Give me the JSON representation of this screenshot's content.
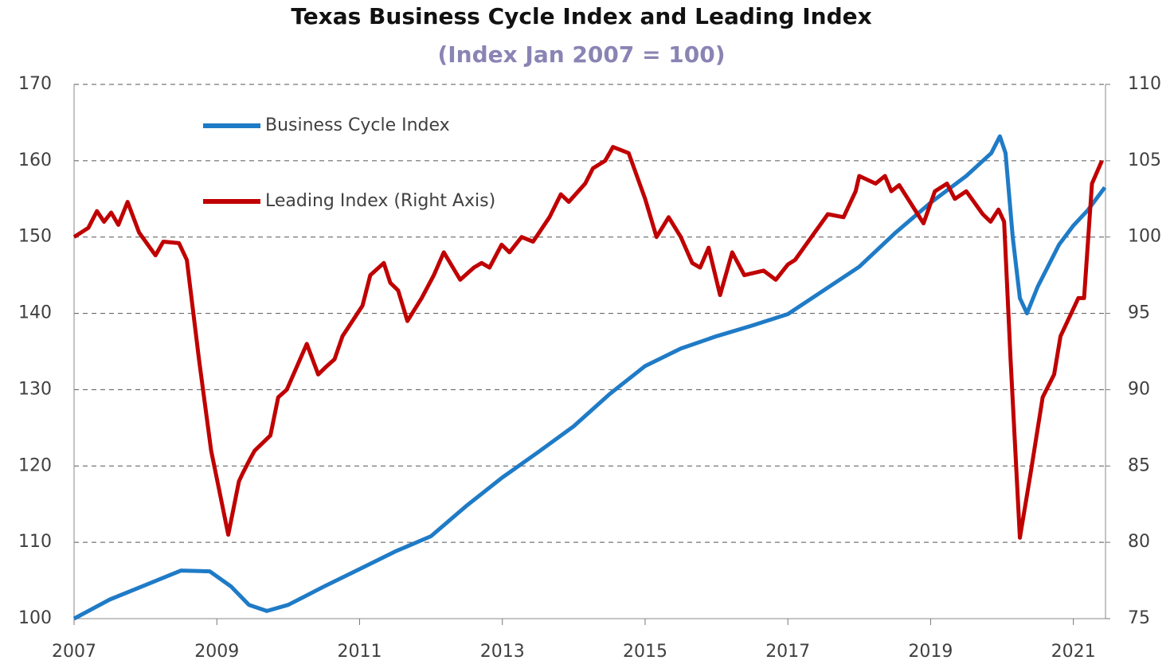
{
  "chart_data": {
    "type": "line",
    "title": "Texas Business Cycle Index and Leading Index",
    "subtitle": "(Index Jan 2007 = 100)",
    "xlim": [
      2007,
      2021.45
    ],
    "xticks": [
      2007,
      2009,
      2011,
      2013,
      2015,
      2017,
      2019,
      2021
    ],
    "ylim": [
      100,
      170
    ],
    "yticks": [
      100,
      110,
      120,
      130,
      140,
      150,
      160,
      170
    ],
    "y2lim": [
      75,
      110
    ],
    "y2ticks": [
      75,
      80,
      85,
      90,
      95,
      100,
      105,
      110
    ],
    "grid": true,
    "legend": "top-left",
    "series": [
      {
        "name": "Business Cycle Index",
        "color": "#1f7bc6",
        "x": [
          2007.0,
          2007.5,
          2008.0,
          2008.5,
          2008.9,
          2009.2,
          2009.45,
          2009.7,
          2010.0,
          2010.5,
          2011.0,
          2011.5,
          2012.0,
          2012.5,
          2013.0,
          2013.5,
          2014.0,
          2014.5,
          2015.0,
          2015.5,
          2016.0,
          2016.5,
          2017.0,
          2017.5,
          2018.0,
          2018.5,
          2019.0,
          2019.5,
          2019.85,
          2019.97,
          2020.05,
          2020.15,
          2020.25,
          2020.35,
          2020.5,
          2020.8,
          2021.0,
          2021.2,
          2021.44
        ],
        "values": [
          100,
          102.5,
          104.4,
          106.3,
          106.2,
          104.2,
          101.8,
          101,
          101.8,
          104.2,
          106.5,
          108.8,
          110.8,
          114.8,
          118.5,
          121.8,
          125.2,
          129.4,
          133.1,
          135.4,
          137,
          138.4,
          139.9,
          143,
          146.1,
          150.5,
          154.5,
          158,
          161,
          163.2,
          161,
          150,
          142,
          140,
          143.5,
          149,
          151.5,
          153.5,
          156.5
        ]
      },
      {
        "name": "Leading Index (Right Axis)",
        "color": "#c00000",
        "axis": "y2",
        "x": [
          2007.0,
          2007.2,
          2007.32,
          2007.42,
          2007.52,
          2007.62,
          2007.75,
          2007.91,
          2008.14,
          2008.25,
          2008.47,
          2008.58,
          2008.75,
          2008.92,
          2009.03,
          2009.16,
          2009.31,
          2009.36,
          2009.47,
          2009.53,
          2009.75,
          2009.86,
          2009.98,
          2010.26,
          2010.42,
          2010.53,
          2010.65,
          2010.76,
          2011.04,
          2011.15,
          2011.34,
          2011.43,
          2011.54,
          2011.67,
          2011.87,
          2012.04,
          2012.18,
          2012.41,
          2012.6,
          2012.71,
          2012.82,
          2012.99,
          2013.1,
          2013.27,
          2013.43,
          2013.66,
          2013.82,
          2013.93,
          2014.16,
          2014.27,
          2014.44,
          2014.55,
          2014.77,
          2015.0,
          2015.16,
          2015.33,
          2015.5,
          2015.66,
          2015.77,
          2015.89,
          2016.05,
          2016.22,
          2016.39,
          2016.66,
          2016.83,
          2017.0,
          2017.1,
          2017.33,
          2017.56,
          2017.78,
          2017.95,
          2018.0,
          2018.23,
          2018.36,
          2018.45,
          2018.56,
          2018.9,
          2019.06,
          2019.23,
          2019.34,
          2019.5,
          2019.73,
          2019.84,
          2019.95,
          2020.03,
          2020.12,
          2020.25,
          2020.4,
          2020.57,
          2020.73,
          2020.82,
          2021.07,
          2021.15,
          2021.26,
          2021.4
        ],
        "values": [
          100,
          100.6,
          101.7,
          101,
          101.6,
          100.8,
          102.3,
          100.3,
          98.8,
          99.7,
          99.6,
          98.5,
          92,
          86,
          83.5,
          80.5,
          84,
          84.5,
          85.5,
          86,
          87,
          89.5,
          90,
          93,
          91,
          91.5,
          92,
          93.5,
          95.5,
          97.5,
          98.3,
          97,
          96.5,
          94.5,
          96,
          97.5,
          99,
          97.2,
          98,
          98.3,
          98,
          99.5,
          99,
          100,
          99.7,
          101.3,
          102.8,
          102.3,
          103.5,
          104.5,
          105,
          105.9,
          105.5,
          102.5,
          100,
          101.3,
          100,
          98.3,
          98,
          99.3,
          96.2,
          99,
          97.5,
          97.8,
          97.2,
          98.2,
          98.5,
          100,
          101.5,
          101.3,
          103,
          104,
          103.5,
          104,
          103,
          103.4,
          100.9,
          103,
          103.5,
          102.5,
          103,
          101.5,
          101,
          101.8,
          101,
          92,
          80.3,
          84.5,
          89.5,
          91,
          93.5,
          96,
          96,
          103.5,
          105
        ]
      }
    ]
  }
}
